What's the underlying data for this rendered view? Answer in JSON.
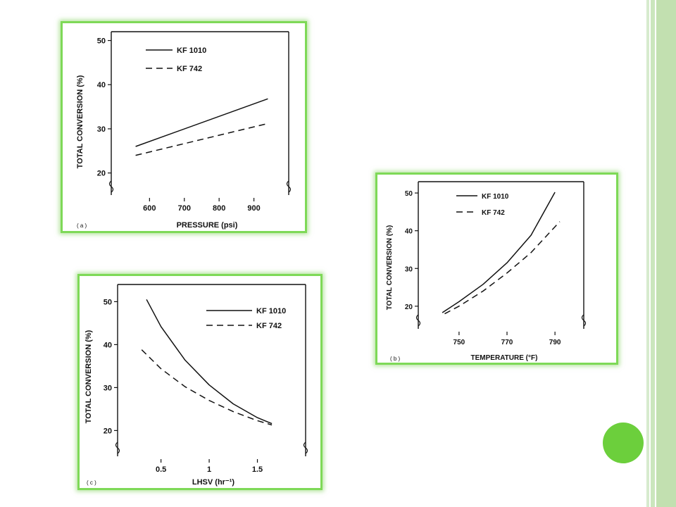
{
  "accent_color": "#6ccf3c",
  "panel_border_color": "#7ed957",
  "chart_data": [
    {
      "id": "a",
      "type": "line",
      "panel_label": "( a )",
      "xlabel": "PRESSURE (psi)",
      "ylabel": "TOTAL CONVERSION (%)",
      "xlim": [
        490,
        1000
      ],
      "ylim": [
        15,
        52
      ],
      "xticks": [
        600,
        700,
        800,
        900
      ],
      "yticks": [
        20,
        30,
        40,
        50
      ],
      "grid": false,
      "legend_position": "top-left",
      "series": [
        {
          "name": "KF 1010",
          "style": "solid",
          "x": [
            560,
            940
          ],
          "y": [
            26,
            36.8
          ]
        },
        {
          "name": "KF 742",
          "style": "dashed",
          "x": [
            560,
            940
          ],
          "y": [
            24,
            31.2
          ]
        }
      ]
    },
    {
      "id": "b",
      "type": "line",
      "panel_label": "( b )",
      "xlabel": "TEMPERATURE (°F)",
      "ylabel": "TOTAL CONVERSION (%)",
      "xlim": [
        733,
        802
      ],
      "ylim": [
        14,
        53
      ],
      "xticks": [
        750,
        770,
        790
      ],
      "yticks": [
        20,
        30,
        40,
        50
      ],
      "grid": false,
      "legend_position": "top-left",
      "series": [
        {
          "name": "KF 1010",
          "style": "solid",
          "x": [
            743,
            750,
            760,
            770,
            780,
            790
          ],
          "y": [
            18.3,
            21.2,
            25.8,
            31.5,
            38.8,
            50.2
          ]
        },
        {
          "name": "KF 742",
          "style": "dashed",
          "x": [
            744,
            750,
            760,
            770,
            780,
            792
          ],
          "y": [
            18.0,
            20.0,
            24.0,
            28.8,
            34.2,
            42.4
          ]
        }
      ]
    },
    {
      "id": "c",
      "type": "line",
      "panel_label": "( c )",
      "xlabel": "LHSV (hr⁻¹)",
      "ylabel": "TOTAL CONVERSION (%)",
      "xlim": [
        0.05,
        2.0
      ],
      "ylim": [
        14,
        54
      ],
      "xticks": [
        0.5,
        1.0,
        1.5
      ],
      "yticks": [
        20,
        30,
        40,
        50
      ],
      "grid": false,
      "legend_position": "top-right",
      "series": [
        {
          "name": "KF 1010",
          "style": "solid",
          "x": [
            0.35,
            0.5,
            0.75,
            1.0,
            1.25,
            1.5,
            1.65
          ],
          "y": [
            50.5,
            44.2,
            36.4,
            30.6,
            26.2,
            23.0,
            21.6
          ]
        },
        {
          "name": "KF 742",
          "style": "dashed",
          "x": [
            0.3,
            0.5,
            0.75,
            1.0,
            1.25,
            1.5,
            1.65
          ],
          "y": [
            38.8,
            34.4,
            30.2,
            27.0,
            24.4,
            22.3,
            21.3
          ]
        }
      ]
    }
  ]
}
